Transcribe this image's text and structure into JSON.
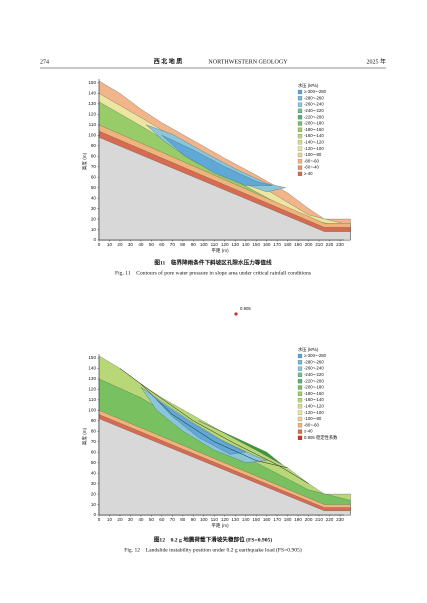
{
  "header": {
    "page": "274",
    "journal_cn": "西 北 地 质",
    "journal_en": "NORTHWESTERN GEOLOGY",
    "year": "2025 年"
  },
  "float_label": "0.905",
  "figures": [
    {
      "x_label": "平距 (m)",
      "y_label": "高度 (m)",
      "xticks": [
        0,
        10,
        20,
        30,
        40,
        50,
        60,
        70,
        80,
        90,
        100,
        110,
        120,
        130,
        140,
        150,
        160,
        170,
        180,
        190,
        200,
        210,
        220,
        230
      ],
      "yticks": [
        0,
        10,
        20,
        30,
        40,
        50,
        60,
        70,
        80,
        90,
        100,
        110,
        120,
        130,
        140,
        150
      ],
      "legend_title": "水压 (kPa)",
      "legend": [
        {
          "label": "≥-300~-280",
          "color": "#5fa8d8"
        },
        {
          "label": "-280~-260",
          "color": "#72b6dc"
        },
        {
          "label": "-260~-240",
          "color": "#88c6dc"
        },
        {
          "label": "-240~-220",
          "color": "#6cc08c"
        },
        {
          "label": "-220~-200",
          "color": "#58b070"
        },
        {
          "label": "-200~-180",
          "color": "#78c060"
        },
        {
          "label": "-180~-160",
          "color": "#98cc68"
        },
        {
          "label": "-160~-140",
          "color": "#b8d878"
        },
        {
          "label": "-140~-120",
          "color": "#d4e090"
        },
        {
          "label": "-120~-100",
          "color": "#ece6a0"
        },
        {
          "label": "-100~-80",
          "color": "#f0d090"
        },
        {
          "label": "-80~-60",
          "color": "#eeb47c"
        },
        {
          "label": "-60~-40",
          "color": "#e49468"
        },
        {
          "label": "≥-40",
          "color": "#d86a50"
        }
      ],
      "caption_cn": "图11　临界降雨条件下斜坡区孔隙水压力等值线",
      "caption_en": "Fig. 11　Contours of pore water pressure in slope area under critical rainfall conditions"
    },
    {
      "x_label": "平距 (m)",
      "y_label": "高度 (m)",
      "xticks": [
        0,
        10,
        20,
        30,
        40,
        50,
        60,
        70,
        80,
        90,
        100,
        110,
        120,
        130,
        140,
        150,
        160,
        170,
        180,
        190,
        200,
        210,
        220,
        230
      ],
      "yticks": [
        0,
        10,
        20,
        30,
        40,
        50,
        60,
        70,
        80,
        90,
        100,
        110,
        120,
        130,
        140,
        150
      ],
      "legend_title": "水压 (kPa)",
      "legend": [
        {
          "label": "≥-300~-280",
          "color": "#5fa8d8"
        },
        {
          "label": "-280~-260",
          "color": "#72b6dc"
        },
        {
          "label": "-260~-240",
          "color": "#88c6dc"
        },
        {
          "label": "-240~-220",
          "color": "#6cc08c"
        },
        {
          "label": "-220~-200",
          "color": "#58b070"
        },
        {
          "label": "-200~-180",
          "color": "#78c060"
        },
        {
          "label": "-180~-160",
          "color": "#98cc68"
        },
        {
          "label": "-160~-140",
          "color": "#b8d878"
        },
        {
          "label": "-140~-120",
          "color": "#d4e090"
        },
        {
          "label": "-120~-100",
          "color": "#ece6a0"
        },
        {
          "label": "-100~-80",
          "color": "#f0d090"
        },
        {
          "label": "-80~-60",
          "color": "#eeb47c"
        },
        {
          "label": "≥-40",
          "color": "#d86a50"
        },
        {
          "label": "0.905 稳定性系数",
          "color": "#d83020"
        }
      ],
      "caption_cn": "图12　0.2 g 地震荷载下滑坡失稳部位 (FS=0.905)",
      "caption_en": "Fig. 12　Landslide instability position under 0.2 g earthquake load (FS=0.905)"
    }
  ]
}
